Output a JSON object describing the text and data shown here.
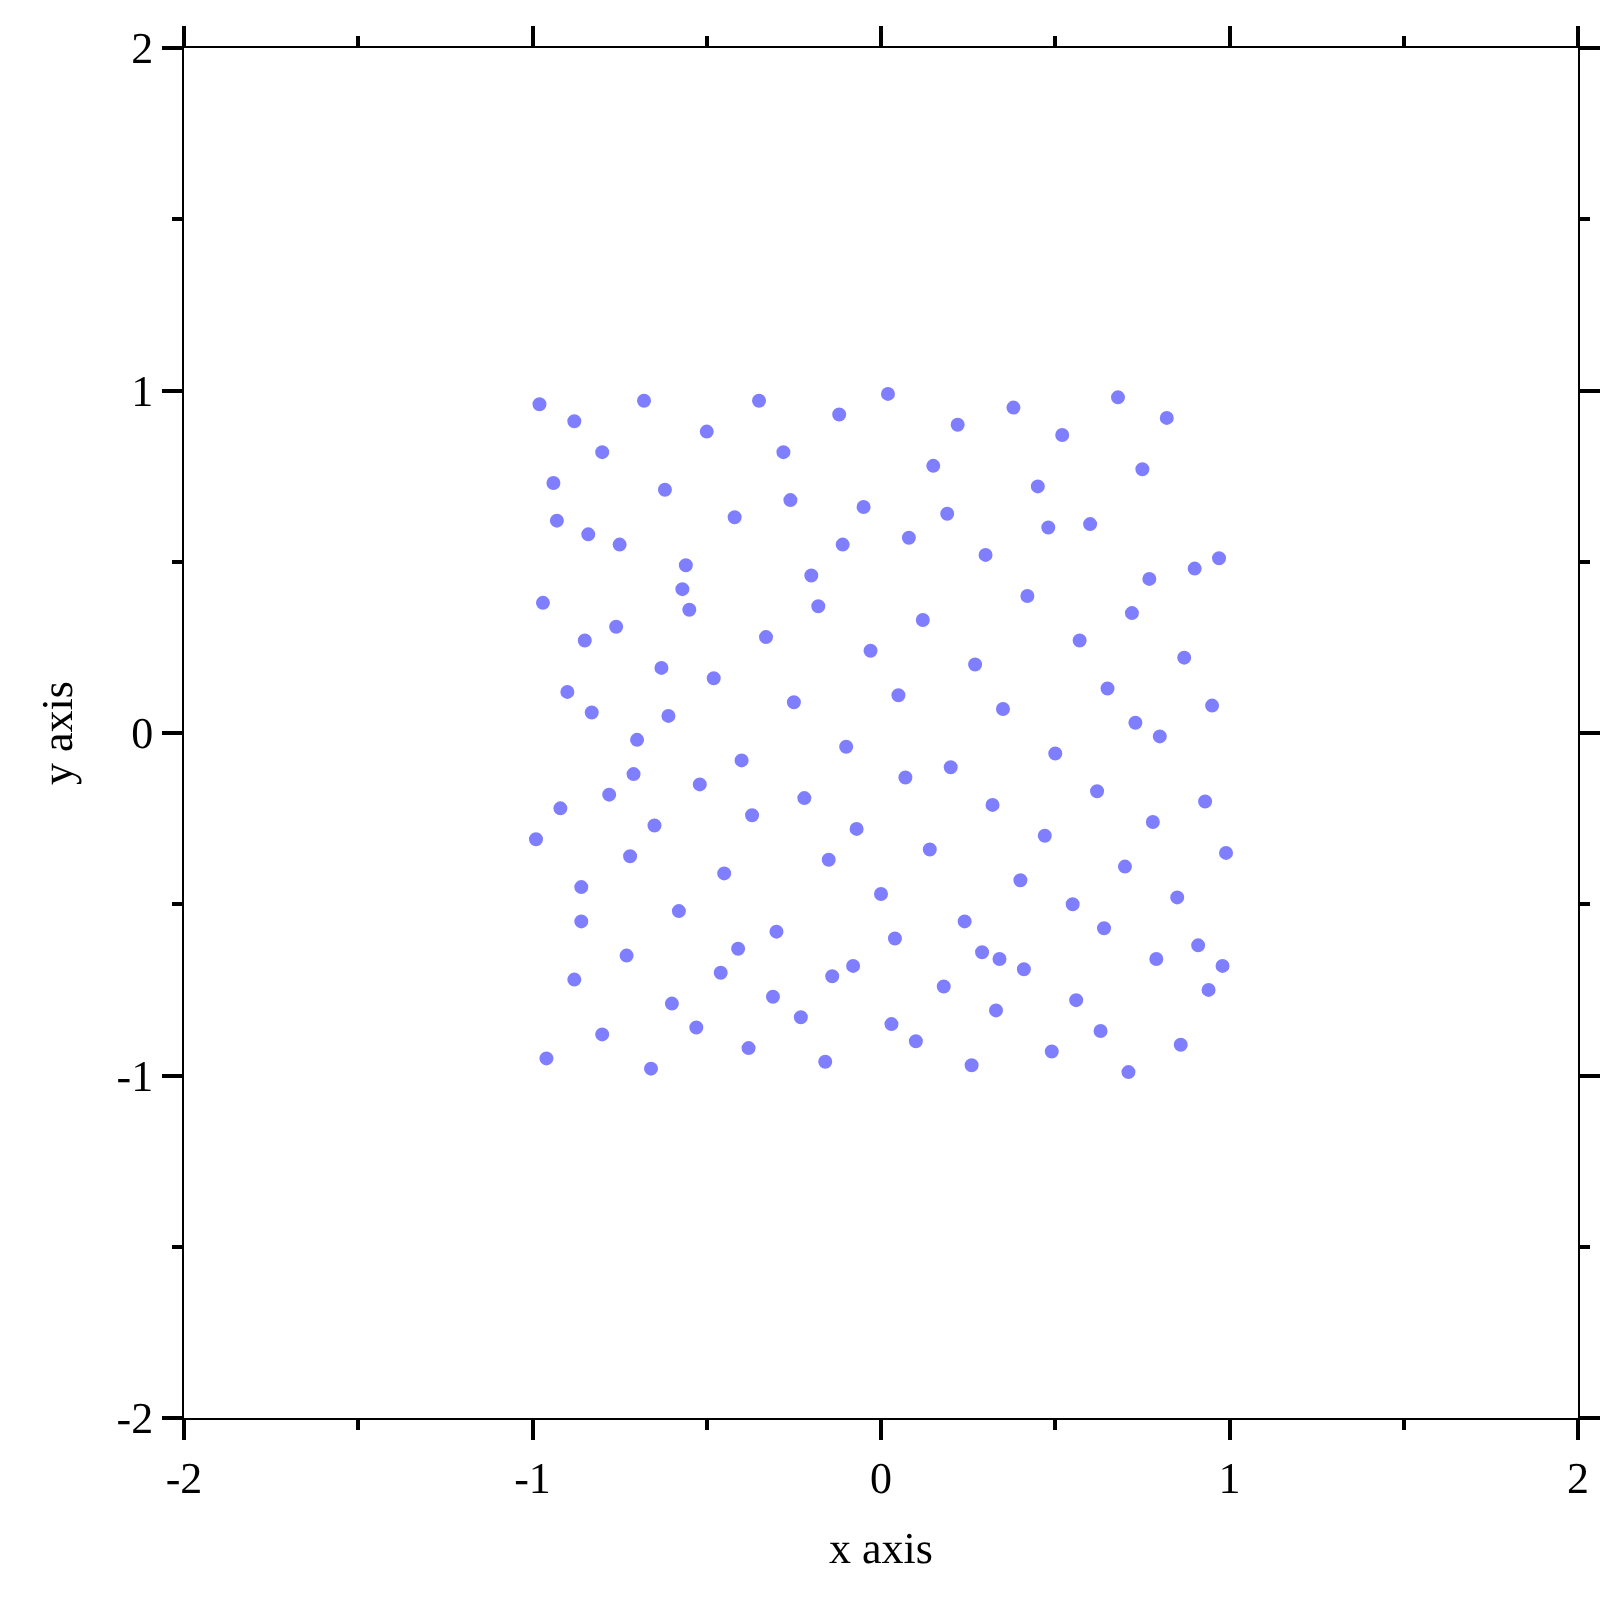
{
  "chart_data": {
    "type": "scatter",
    "xlabel": "x axis",
    "ylabel": "y axis",
    "xlim": [
      -2,
      2
    ],
    "ylim": [
      -2,
      2
    ],
    "xticks": [
      -2,
      {
        "value": -1.5,
        "label": null
      },
      -1,
      {
        "value": -0.5,
        "label": null
      },
      0,
      {
        "value": 0.5,
        "label": null
      },
      1,
      {
        "value": 1.5,
        "label": null
      },
      2
    ],
    "yticks": [
      -2,
      {
        "value": -1.5,
        "label": null
      },
      -1,
      {
        "value": -0.5,
        "label": null
      },
      0,
      {
        "value": 0.5,
        "label": null
      },
      1,
      {
        "value": 1.5,
        "label": null
      },
      2
    ],
    "marker": "circle",
    "series": [
      {
        "color": "#0000ff",
        "x": [
          -0.98,
          -0.93,
          -0.88,
          -0.85,
          -0.8,
          -0.75,
          -0.68,
          -0.62,
          -0.55,
          -0.5,
          -0.42,
          -0.35,
          -0.28,
          -0.2,
          -0.12,
          -0.05,
          0.02,
          0.08,
          0.15,
          0.22,
          0.3,
          0.38,
          0.45,
          0.52,
          0.6,
          0.68,
          0.75,
          0.82,
          0.9,
          0.97,
          -0.97,
          -0.9,
          -0.83,
          -0.76,
          -0.7,
          -0.63,
          -0.57,
          -0.48,
          -0.4,
          -0.33,
          -0.25,
          -0.18,
          -0.1,
          -0.03,
          0.05,
          0.12,
          0.2,
          0.27,
          0.35,
          0.42,
          0.5,
          0.57,
          0.65,
          0.72,
          0.8,
          0.87,
          0.95,
          -0.99,
          -0.92,
          -0.86,
          -0.78,
          -0.72,
          -0.65,
          -0.58,
          -0.52,
          -0.45,
          -0.37,
          -0.3,
          -0.22,
          -0.15,
          -0.07,
          0.0,
          0.07,
          0.14,
          0.24,
          0.32,
          0.4,
          0.47,
          0.55,
          0.62,
          0.7,
          0.78,
          0.85,
          0.93,
          0.99,
          -0.96,
          -0.88,
          -0.8,
          -0.73,
          -0.66,
          -0.6,
          -0.53,
          -0.46,
          -0.38,
          -0.31,
          -0.23,
          -0.16,
          -0.08,
          0.03,
          0.1,
          0.18,
          0.26,
          0.33,
          0.41,
          0.49,
          0.56,
          0.63,
          0.71,
          0.79,
          0.86,
          0.94,
          -0.94,
          -0.84,
          -0.71,
          -0.56,
          -0.41,
          -0.26,
          -0.11,
          0.04,
          0.19,
          0.34,
          0.48,
          0.64,
          0.77,
          0.91,
          0.98,
          -0.61,
          -0.14,
          0.29,
          0.73,
          -0.86
        ],
        "values": [
          0.96,
          0.62,
          0.91,
          0.27,
          0.82,
          0.55,
          0.97,
          0.71,
          0.36,
          0.88,
          0.63,
          0.97,
          0.82,
          0.46,
          0.93,
          0.66,
          0.99,
          0.57,
          0.78,
          0.9,
          0.52,
          0.95,
          0.72,
          0.87,
          0.61,
          0.98,
          0.77,
          0.92,
          0.48,
          0.51,
          0.38,
          0.12,
          0.06,
          0.31,
          -0.02,
          0.19,
          0.42,
          0.16,
          -0.08,
          0.28,
          0.09,
          0.37,
          -0.04,
          0.24,
          0.11,
          0.33,
          -0.1,
          0.2,
          0.07,
          0.4,
          -0.06,
          0.27,
          0.13,
          0.35,
          -0.01,
          0.22,
          0.08,
          -0.31,
          -0.22,
          -0.45,
          -0.18,
          -0.36,
          -0.27,
          -0.52,
          -0.15,
          -0.41,
          -0.24,
          -0.58,
          -0.19,
          -0.37,
          -0.28,
          -0.47,
          -0.13,
          -0.34,
          -0.55,
          -0.21,
          -0.43,
          -0.3,
          -0.5,
          -0.17,
          -0.39,
          -0.26,
          -0.48,
          -0.2,
          -0.35,
          -0.95,
          -0.72,
          -0.88,
          -0.65,
          -0.98,
          -0.79,
          -0.86,
          -0.7,
          -0.92,
          -0.77,
          -0.83,
          -0.96,
          -0.68,
          -0.85,
          -0.9,
          -0.74,
          -0.97,
          -0.81,
          -0.69,
          -0.93,
          -0.78,
          -0.87,
          -0.99,
          -0.66,
          -0.91,
          -0.75,
          0.73,
          0.58,
          -0.12,
          0.49,
          -0.63,
          0.68,
          0.55,
          -0.6,
          0.64,
          -0.66,
          0.6,
          -0.57,
          0.45,
          -0.62,
          -0.68,
          0.05,
          -0.71,
          -0.64,
          0.03,
          -0.55
        ]
      }
    ]
  }
}
